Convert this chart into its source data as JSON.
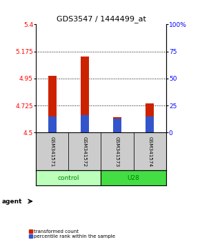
{
  "title": "GDS3547 / 1444499_at",
  "samples": [
    "GSM341571",
    "GSM341572",
    "GSM341573",
    "GSM341574"
  ],
  "red_values": [
    4.97,
    5.13,
    4.63,
    4.745
  ],
  "blue_values": [
    4.635,
    4.645,
    4.615,
    4.635
  ],
  "y_min": 4.5,
  "y_max": 5.4,
  "y_ticks": [
    4.5,
    4.725,
    4.95,
    5.175,
    5.4
  ],
  "y_right_ticks": [
    0,
    25,
    50,
    75,
    100
  ],
  "bar_width": 0.25,
  "red_color": "#cc2200",
  "blue_color": "#3355cc",
  "sample_bg": "#cccccc",
  "control_color": "#bbffbb",
  "u28_color": "#44dd44",
  "legend_red": "transformed count",
  "legend_blue": "percentile rank within the sample",
  "agent_label": "agent"
}
